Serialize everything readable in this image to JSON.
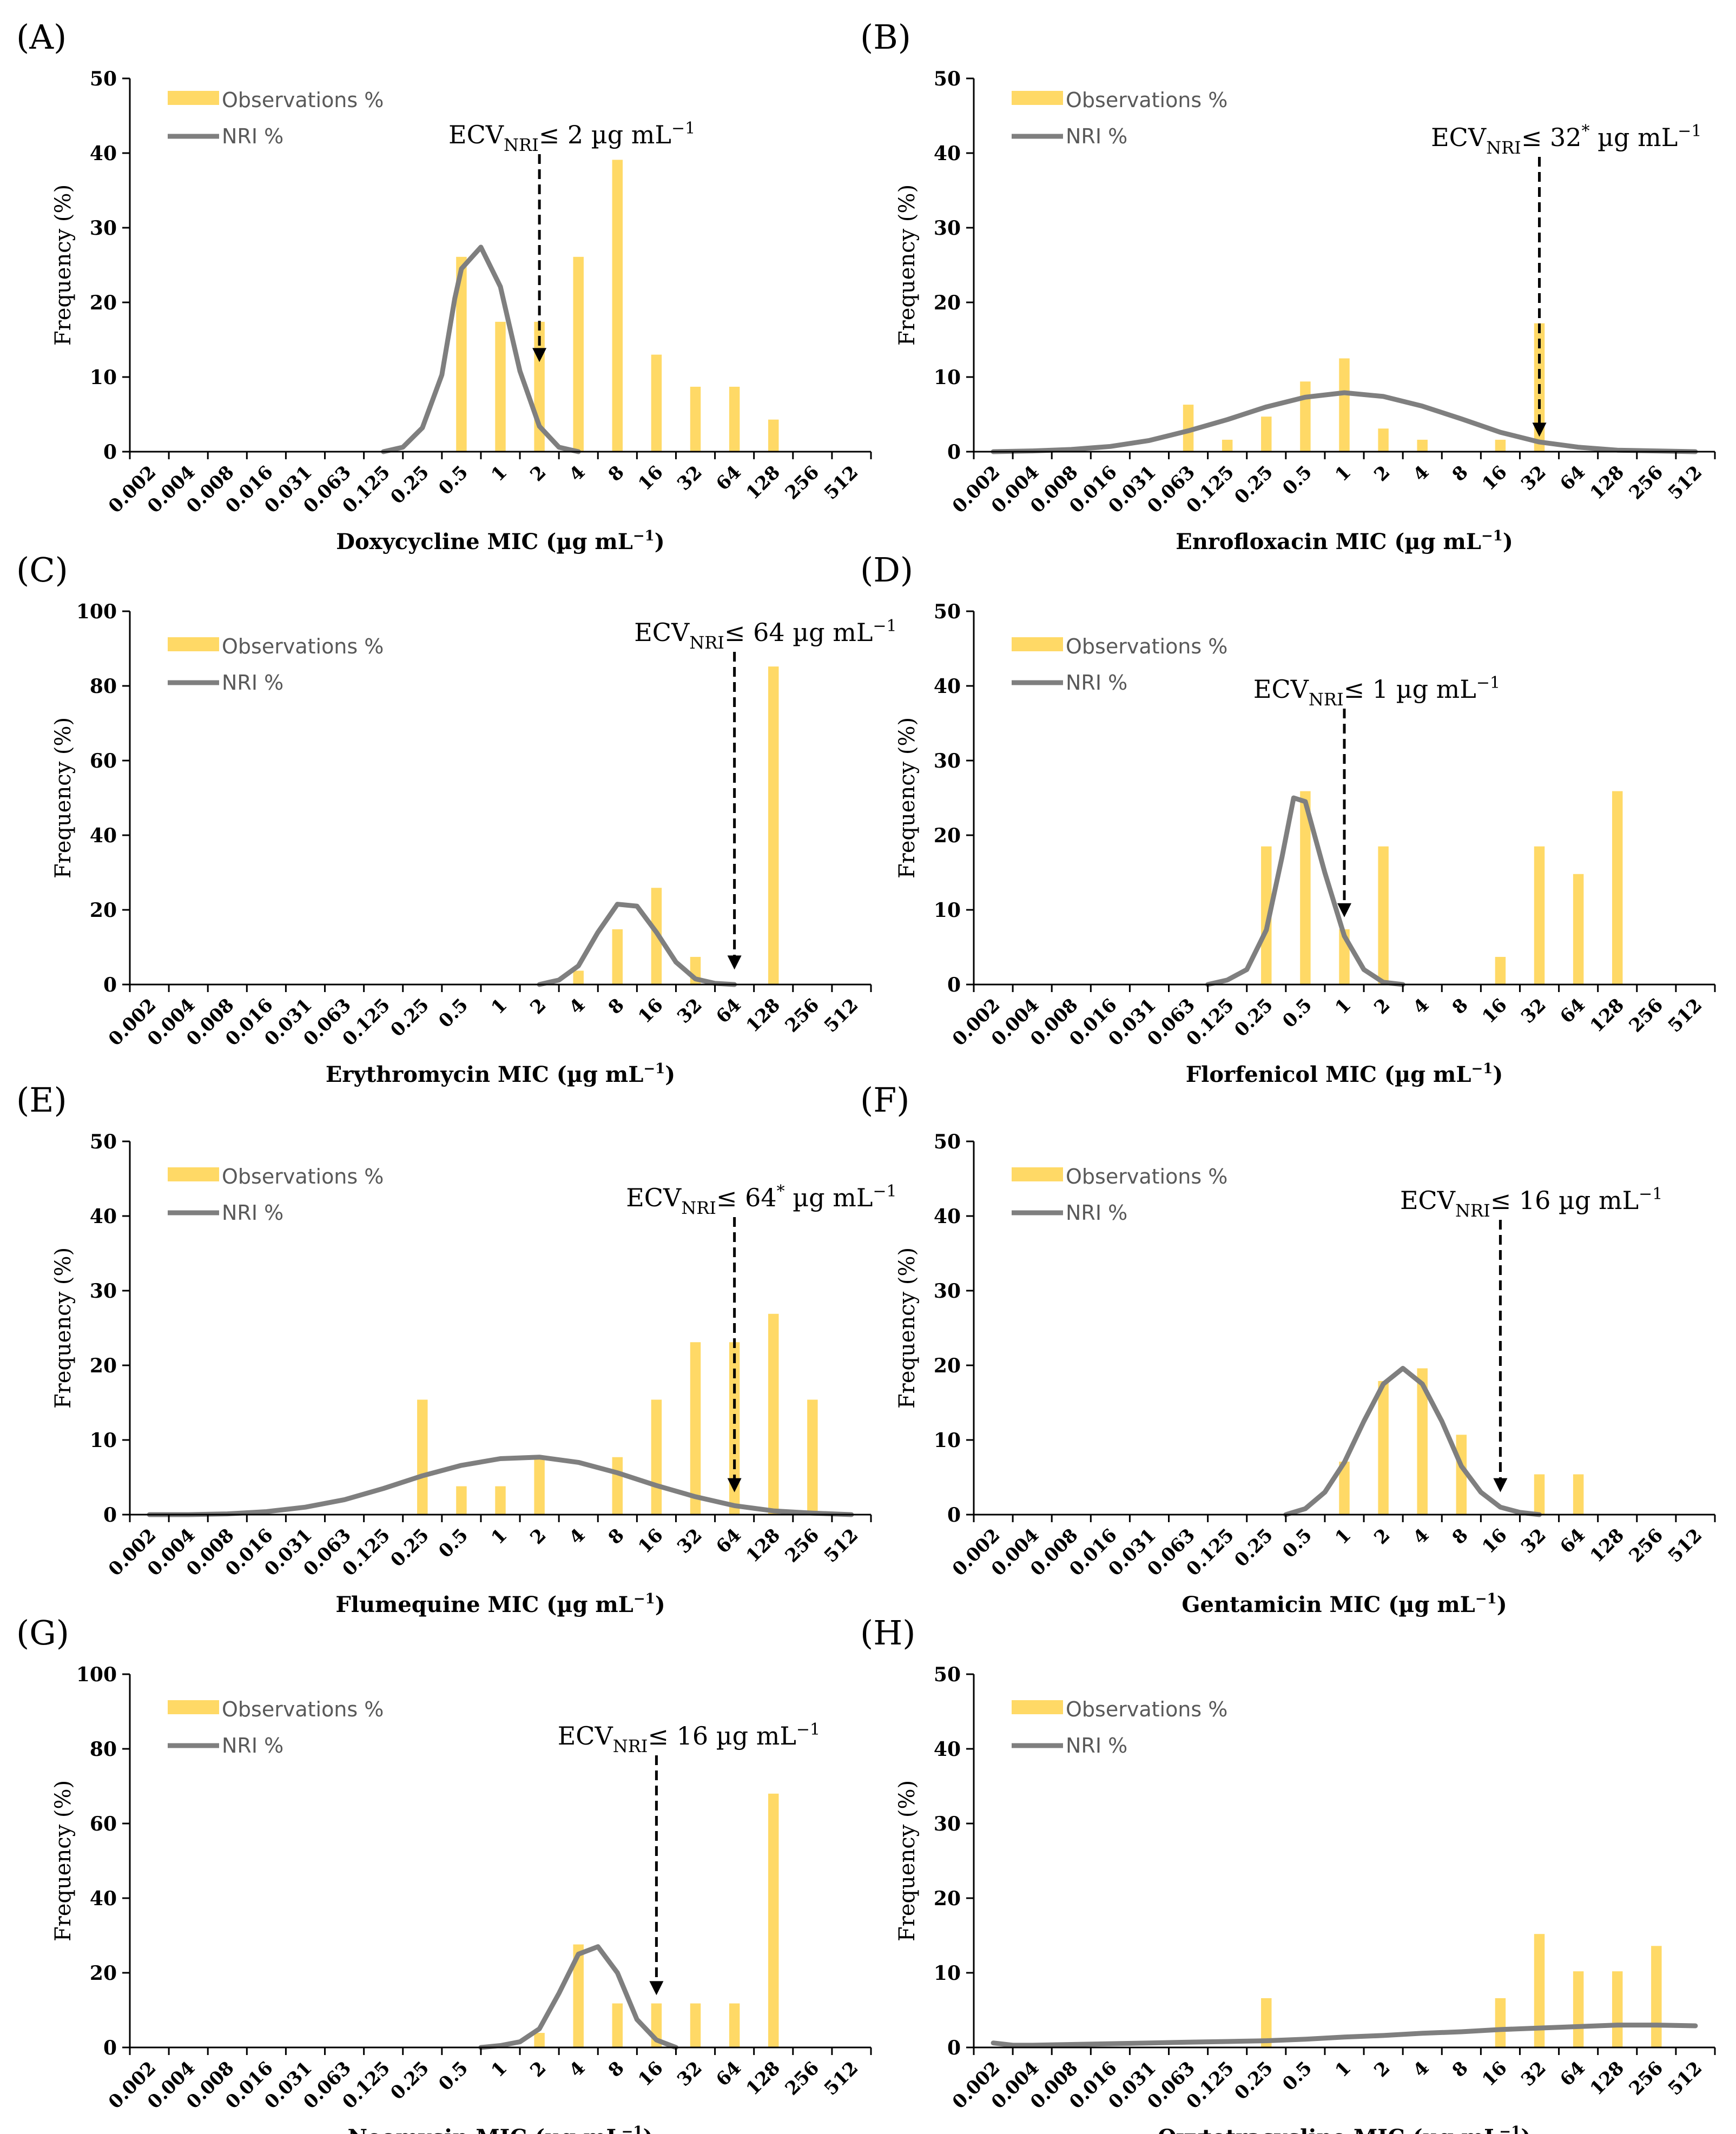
{
  "common": {
    "categories": [
      "0.002",
      "0.004",
      "0.008",
      "0.016",
      "0.031",
      "0.063",
      "0.125",
      "0.25",
      "0.5",
      "1",
      "2",
      "4",
      "8",
      "16",
      "32",
      "64",
      "128",
      "256",
      "512"
    ],
    "legend_obs": "Observations %",
    "legend_nri": "NRI %",
    "ylabel": "Frequency (%)",
    "xlabel_suffix": " MIC (µg mL",
    "xlabel_sup": "−1",
    "xlabel_close": ")",
    "ecv_prefix": "ECV",
    "ecv_sub": "NRI",
    "ecv_le": "≤",
    "ecv_unit": "µg mL",
    "ecv_sup": "−1",
    "colors": {
      "bar": "#FFD966",
      "line": "#7F7F7F",
      "arrow": "#000000",
      "axis": "#000000"
    }
  },
  "chart_data": [
    {
      "panel": "(A)",
      "type": "bar",
      "drug": "Doxycycline",
      "ylim": [
        0,
        50
      ],
      "yticks": [
        0,
        10,
        20,
        30,
        40,
        50
      ],
      "bar_values": [
        0,
        0,
        0,
        0,
        0,
        0,
        0,
        0,
        26.1,
        17.4,
        17.4,
        26.1,
        39.1,
        13.0,
        8.7,
        8.7,
        4.3,
        0,
        0
      ],
      "nri_x": [
        6.0,
        6.5,
        7.0,
        7.5,
        7.83,
        8.0,
        8.5,
        9.0,
        9.5,
        10.0,
        10.5,
        11.0
      ],
      "nri_values": [
        0,
        0.6,
        3.2,
        10.3,
        20.5,
        24.5,
        27.4,
        22.1,
        10.8,
        3.4,
        0.6,
        0
      ],
      "ecv_value": "2",
      "ecv_star": false,
      "ecv_index": 10,
      "legend_pos": "top-left",
      "ecv_label_pos": "center"
    },
    {
      "panel": "(B)",
      "type": "bar",
      "drug": "Enrofloxacin",
      "ylim": [
        0,
        50
      ],
      "yticks": [
        0,
        10,
        20,
        30,
        40,
        50
      ],
      "bar_values": [
        0,
        0,
        0,
        0,
        0,
        6.3,
        1.6,
        4.7,
        9.4,
        12.5,
        3.1,
        1.6,
        0,
        1.6,
        17.2,
        0,
        0,
        0,
        0
      ],
      "nri_x": [
        0,
        1,
        2,
        3,
        4,
        5,
        6,
        7,
        8,
        9,
        10,
        11,
        12,
        13,
        14,
        15,
        16,
        17,
        18
      ],
      "nri_values": [
        0,
        0.1,
        0.3,
        0.7,
        1.5,
        2.8,
        4.3,
        6.0,
        7.3,
        7.9,
        7.4,
        6.1,
        4.4,
        2.6,
        1.3,
        0.6,
        0.2,
        0.1,
        0
      ],
      "ecv_value": "32",
      "ecv_star": true,
      "ecv_index": 14,
      "legend_pos": "top-left",
      "ecv_label_pos": "right"
    },
    {
      "panel": "(C)",
      "type": "bar",
      "drug": "Erythromycin",
      "ylim": [
        0,
        100
      ],
      "yticks": [
        0,
        20,
        40,
        60,
        80,
        100
      ],
      "bar_values": [
        0,
        0,
        0,
        0,
        0,
        0,
        0,
        0,
        0,
        0,
        0,
        3.7,
        14.8,
        25.9,
        7.4,
        0,
        85.2,
        0,
        0
      ],
      "nri_x": [
        10.0,
        10.5,
        11.0,
        11.5,
        12.0,
        12.5,
        13.0,
        13.5,
        14.0,
        14.5,
        15.0
      ],
      "nri_values": [
        0,
        1.2,
        5.0,
        14.0,
        21.5,
        21.0,
        14.0,
        6.0,
        1.5,
        0.3,
        0
      ],
      "ecv_value": "64",
      "ecv_star": false,
      "ecv_index": 15,
      "legend_pos": "top-left",
      "ecv_label_pos": "right"
    },
    {
      "panel": "(D)",
      "type": "bar",
      "drug": "Florfenicol",
      "ylim": [
        0,
        50
      ],
      "yticks": [
        0,
        10,
        20,
        30,
        40,
        50
      ],
      "bar_values": [
        0,
        0,
        0,
        0,
        0,
        0,
        0,
        18.5,
        25.9,
        7.4,
        18.5,
        0,
        0,
        3.7,
        18.5,
        14.8,
        25.9,
        0,
        0
      ],
      "nri_x": [
        5.5,
        6.0,
        6.5,
        7.0,
        7.4,
        7.7,
        8.0,
        8.5,
        9.0,
        9.5,
        10.0,
        10.5
      ],
      "nri_values": [
        0,
        0.6,
        2.0,
        7.3,
        17.0,
        25.0,
        24.5,
        15.0,
        6.5,
        2.0,
        0.3,
        0
      ],
      "ecv_value": "1",
      "ecv_star": false,
      "ecv_index": 9,
      "legend_pos": "top-left",
      "ecv_label_pos": "center"
    },
    {
      "panel": "(E)",
      "type": "bar",
      "drug": "Flumequine",
      "ylim": [
        0,
        50
      ],
      "yticks": [
        0,
        10,
        20,
        30,
        40,
        50
      ],
      "bar_values": [
        0,
        0,
        0,
        0,
        0,
        0,
        0,
        15.4,
        3.8,
        3.8,
        7.7,
        0,
        7.7,
        15.4,
        23.1,
        23.1,
        26.9,
        15.4,
        0
      ],
      "nri_x": [
        0,
        1,
        2,
        3,
        4,
        5,
        6,
        7,
        8,
        9,
        10,
        11,
        12,
        13,
        14,
        15,
        16,
        17,
        18
      ],
      "nri_values": [
        0,
        0,
        0.1,
        0.4,
        1.0,
        2.0,
        3.5,
        5.2,
        6.6,
        7.5,
        7.7,
        7.0,
        5.6,
        3.9,
        2.4,
        1.2,
        0.5,
        0.2,
        0
      ],
      "ecv_value": "64",
      "ecv_star": true,
      "ecv_index": 15,
      "legend_pos": "top-left",
      "ecv_label_pos": "right"
    },
    {
      "panel": "(F)",
      "type": "bar",
      "drug": "Gentamicin",
      "ylim": [
        0,
        50
      ],
      "yticks": [
        0,
        10,
        20,
        30,
        40,
        50
      ],
      "bar_values": [
        0,
        0,
        0,
        0,
        0,
        0,
        0,
        0,
        0,
        7.1,
        17.9,
        19.6,
        10.7,
        0,
        5.4,
        5.4,
        0,
        0,
        0
      ],
      "nri_x": [
        7.5,
        8.0,
        8.5,
        9.0,
        9.5,
        10.0,
        10.5,
        11.0,
        11.5,
        12.0,
        12.5,
        13.0,
        13.5,
        14.0
      ],
      "nri_values": [
        0,
        0.8,
        3.0,
        7.0,
        12.5,
        17.5,
        19.6,
        17.5,
        12.5,
        6.5,
        3.0,
        1.0,
        0.3,
        0
      ],
      "ecv_value": "16",
      "ecv_star": false,
      "ecv_index": 13,
      "legend_pos": "top-left",
      "ecv_label_pos": "right"
    },
    {
      "panel": "(G)",
      "type": "bar",
      "drug": "Neomycin",
      "ylim": [
        0,
        100
      ],
      "yticks": [
        0,
        20,
        40,
        60,
        80,
        100
      ],
      "bar_values": [
        0,
        0,
        0,
        0,
        0,
        0,
        0,
        0,
        0,
        0,
        3.9,
        27.6,
        11.8,
        11.8,
        11.8,
        11.8,
        68.0,
        0,
        0
      ],
      "nri_x": [
        8.5,
        9.0,
        9.5,
        10.0,
        10.5,
        11.0,
        11.5,
        12.0,
        12.5,
        13.0,
        13.5
      ],
      "nri_values": [
        0,
        0.5,
        1.5,
        5.0,
        14.5,
        25.0,
        27.0,
        20.0,
        7.5,
        2.0,
        0
      ],
      "ecv_value": "16",
      "ecv_star": false,
      "ecv_index": 13,
      "legend_pos": "top-left",
      "ecv_label_pos": "center"
    },
    {
      "panel": "(H)",
      "type": "bar",
      "drug": "Oxytetracycline",
      "ylim": [
        0,
        50
      ],
      "yticks": [
        0,
        10,
        20,
        30,
        40,
        50
      ],
      "bar_values": [
        0,
        0,
        0,
        0,
        0,
        0,
        0,
        6.6,
        0,
        0,
        0,
        0,
        0,
        6.6,
        15.2,
        10.2,
        10.2,
        13.6,
        0
      ],
      "nri_x": [
        0,
        0.5,
        1,
        2,
        3,
        4,
        5,
        6,
        7,
        8,
        9,
        10,
        11,
        12,
        13,
        14,
        15,
        16,
        17,
        18
      ],
      "nri_values": [
        0.6,
        0.3,
        0.3,
        0.4,
        0.5,
        0.6,
        0.7,
        0.8,
        0.9,
        1.1,
        1.4,
        1.6,
        1.9,
        2.1,
        2.4,
        2.6,
        2.8,
        3.0,
        3.0,
        2.9
      ],
      "ecv_value": null,
      "ecv_star": false,
      "ecv_index": null,
      "legend_pos": "top-left",
      "ecv_label_pos": "none"
    }
  ]
}
